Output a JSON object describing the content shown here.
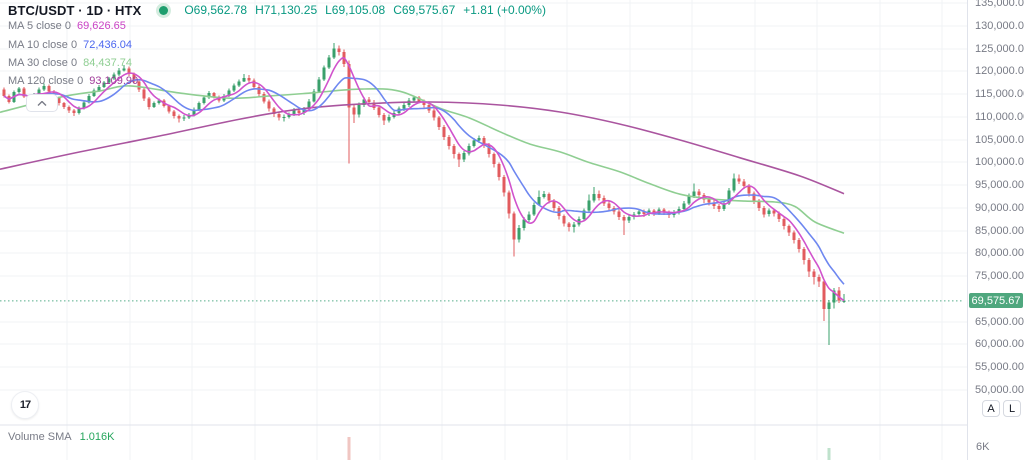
{
  "header": {
    "symbol_title": "BTC/USDT · 1D · HTX",
    "status_color": "#1e9e6e",
    "status_halo": "#d4ecdf",
    "ohlc_color": "#089981",
    "ohlc_items": [
      {
        "label": "O",
        "value": "69,562.78"
      },
      {
        "label": "H",
        "value": "71,130.25"
      },
      {
        "label": "L",
        "value": "69,105.08"
      },
      {
        "label": "C",
        "value": "69,575.67"
      },
      {
        "label": "",
        "value": "+1.81 (+0.00%)"
      }
    ]
  },
  "indicators": [
    {
      "label": "MA 5 close 0",
      "value": "69,626.65",
      "color": "#ca43c5",
      "period": 5
    },
    {
      "label": "MA 10 close 0",
      "value": "72,436.04",
      "color": "#4b66ee",
      "period": 10
    },
    {
      "label": "MA 30 close 0",
      "value": "84,437.74",
      "color": "#8fce92",
      "period": 30
    },
    {
      "label": "MA 120 close 0",
      "value": "93,109.90",
      "color": "#a03c99",
      "period": 120
    }
  ],
  "volume_pane": {
    "label": "Volume SMA",
    "value": "1.016K",
    "value_color": "#26a65d",
    "axis_label": "6K"
  },
  "axis": {
    "tick_prices": [
      135000,
      130000,
      125000,
      120000,
      115000,
      110000,
      105000,
      100000,
      95000,
      90000,
      85000,
      80000,
      75000,
      65000,
      60000,
      55000,
      50000
    ],
    "current_price": 69575.67,
    "current_price_label": "69,575.67",
    "badge_color": "#4fa77e"
  },
  "buttons": {
    "auto_label": "A",
    "log_label": "L"
  },
  "footer": {
    "logo_text": "17"
  },
  "chart_data": {
    "type": "candlestick",
    "symbol": "BTC/USDT",
    "interval": "1D",
    "exchange": "HTX",
    "price_axis_range": [
      50000,
      135000
    ],
    "colors": {
      "up": "#3aa06b",
      "down": "#e25b5e",
      "grid": "#f1f3f6",
      "separator": "#e0e3eb",
      "price_line": "#56ad8a",
      "vol_up": "#bfe2cc",
      "vol_down": "#f0c6c2",
      "ma5": "#d153cc",
      "ma10": "#6e87f0",
      "ma30": "#8fce92",
      "ma120": "#aa559f"
    },
    "candles": {
      "first_open": 116000,
      "closes": [
        114600,
        113300,
        115400,
        116200,
        114500,
        113500,
        114800,
        116000,
        116800,
        115600,
        114200,
        113000,
        112200,
        111400,
        110800,
        111900,
        113200,
        114600,
        115800,
        116600,
        117500,
        118400,
        119300,
        120200,
        120600,
        119400,
        117800,
        116000,
        114000,
        112200,
        113000,
        113600,
        112400,
        111200,
        110200,
        109600,
        109900,
        110400,
        111600,
        113000,
        114200,
        115200,
        114400,
        113600,
        114600,
        115800,
        116900,
        117800,
        118500,
        118000,
        116600,
        115000,
        113400,
        111800,
        110600,
        109800,
        110000,
        110500,
        111400,
        110800,
        111800,
        113400,
        115600,
        118200,
        120800,
        123000,
        125000,
        124200,
        121600,
        112000,
        110500,
        112600,
        113800,
        113200,
        112000,
        110400,
        109200,
        110000,
        110800,
        111800,
        112600,
        113600,
        114200,
        113400,
        112600,
        111400,
        109800,
        107800,
        105600,
        103600,
        101800,
        100600,
        102000,
        103600,
        104800,
        105400,
        103800,
        101800,
        99600,
        96800,
        93400,
        88800,
        83000,
        85600,
        87400,
        88600,
        90600,
        92400,
        93000,
        91600,
        90000,
        88200,
        86600,
        85800,
        86400,
        87600,
        89400,
        91600,
        93000,
        92200,
        91000,
        90000,
        89200,
        88000,
        87200,
        88000,
        88600,
        89200,
        88600,
        89400,
        88800,
        89600,
        89000,
        88400,
        89000,
        89800,
        91000,
        92600,
        93600,
        92800,
        91800,
        91200,
        90400,
        89800,
        91000,
        93800,
        96400,
        95800,
        94800,
        93200,
        91600,
        90000,
        88600,
        89400,
        88800,
        87600,
        86000,
        84600,
        83000,
        81000,
        78600,
        76000,
        74800,
        73800,
        67800,
        69200,
        71800,
        69600,
        69575.67
      ],
      "highs": [
        116400,
        114900,
        115800,
        116600,
        116500,
        114800,
        115200,
        116400,
        117300,
        117100,
        115900,
        114500,
        113300,
        112500,
        111700,
        112300,
        113600,
        115000,
        116200,
        117000,
        117900,
        118800,
        119700,
        120700,
        121400,
        121000,
        119700,
        118100,
        116300,
        114300,
        113400,
        114000,
        113900,
        112700,
        111500,
        110500,
        110400,
        110800,
        112000,
        113400,
        114600,
        115700,
        115500,
        114700,
        115000,
        116200,
        117300,
        118200,
        119400,
        119200,
        118400,
        117000,
        115400,
        113800,
        112200,
        111000,
        110500,
        111000,
        111900,
        111800,
        112200,
        113900,
        116100,
        118700,
        121300,
        123600,
        126200,
        125700,
        124800,
        122400,
        112800,
        113100,
        114300,
        114400,
        113700,
        112400,
        110800,
        110500,
        111300,
        112300,
        113100,
        114100,
        114700,
        114600,
        113800,
        113000,
        111800,
        110200,
        108200,
        106000,
        104000,
        102200,
        102500,
        104100,
        105400,
        105900,
        105800,
        104200,
        102200,
        100000,
        97200,
        93800,
        89200,
        86200,
        88000,
        89200,
        91200,
        93800,
        93700,
        93400,
        92000,
        90400,
        88600,
        86900,
        86900,
        88100,
        89900,
        92900,
        94600,
        93800,
        92700,
        91500,
        90400,
        89600,
        88400,
        88500,
        89100,
        89700,
        89600,
        89900,
        89800,
        90100,
        90000,
        89400,
        89500,
        90300,
        91500,
        93200,
        95400,
        94200,
        93300,
        92300,
        91700,
        90900,
        91500,
        94400,
        97600,
        97300,
        96300,
        95200,
        93600,
        92000,
        90400,
        89900,
        89800,
        89200,
        88000,
        86400,
        85000,
        83400,
        81400,
        79000,
        76600,
        75400,
        74200,
        69800,
        72400,
        72600,
        71130.25
      ],
      "lows": [
        114200,
        112900,
        113000,
        115100,
        114100,
        112600,
        113200,
        114500,
        115700,
        115200,
        113800,
        112500,
        111700,
        110800,
        110200,
        110500,
        111600,
        112900,
        114300,
        115400,
        116300,
        117200,
        118100,
        119000,
        119900,
        119000,
        117300,
        115500,
        113500,
        111600,
        111900,
        112700,
        112000,
        110700,
        109600,
        108800,
        109100,
        109500,
        110100,
        111300,
        112700,
        113900,
        114000,
        113200,
        113300,
        114300,
        115400,
        116600,
        117600,
        117500,
        116100,
        114500,
        112900,
        111200,
        110000,
        109200,
        109000,
        109600,
        110200,
        110200,
        110400,
        111400,
        113100,
        115300,
        117900,
        120500,
        122700,
        123500,
        120900,
        99800,
        108600,
        109900,
        112200,
        112700,
        111500,
        109800,
        108200,
        108800,
        109600,
        110400,
        111300,
        112200,
        113300,
        112900,
        112100,
        110800,
        109200,
        107100,
        104900,
        102800,
        100800,
        99000,
        100100,
        101500,
        103300,
        104200,
        103200,
        101100,
        98900,
        96000,
        92500,
        87700,
        79300,
        82400,
        85000,
        86900,
        88200,
        90500,
        92100,
        91000,
        89300,
        87500,
        85900,
        84800,
        84600,
        85900,
        87100,
        89000,
        91200,
        91600,
        90400,
        89300,
        88500,
        87300,
        84000,
        86700,
        87400,
        88100,
        88000,
        88200,
        88200,
        88400,
        88400,
        87800,
        87900,
        88600,
        89400,
        90600,
        92200,
        92200,
        91100,
        90500,
        89700,
        89100,
        89300,
        90600,
        93400,
        95200,
        94200,
        92500,
        90900,
        89300,
        87900,
        88100,
        88100,
        86900,
        85300,
        83800,
        82200,
        80200,
        77600,
        74800,
        73200,
        72600,
        65200,
        59900,
        67900,
        69100,
        69105.08
      ],
      "last": {
        "open": 69562.78,
        "high": 71130.25,
        "low": 69105.08,
        "close": 69575.67
      }
    },
    "moving_averages": {
      "ma5": {
        "period": 5,
        "source": "computed"
      },
      "ma10": {
        "period": 10,
        "source": "computed"
      },
      "ma30": {
        "period": 30,
        "points": [
          [
            0,
            111000
          ],
          [
            60,
            114300
          ],
          [
            100,
            115700
          ],
          [
            130,
            116800
          ],
          [
            180,
            115200
          ],
          [
            230,
            114100
          ],
          [
            270,
            114600
          ],
          [
            310,
            115200
          ],
          [
            360,
            116100
          ],
          [
            400,
            115600
          ],
          [
            440,
            111900
          ],
          [
            470,
            109700
          ],
          [
            500,
            106700
          ],
          [
            530,
            104000
          ],
          [
            560,
            102300
          ],
          [
            590,
            99900
          ],
          [
            620,
            97900
          ],
          [
            650,
            95300
          ],
          [
            680,
            93000
          ],
          [
            710,
            92000
          ],
          [
            745,
            91500
          ],
          [
            775,
            91300
          ],
          [
            795,
            90300
          ],
          [
            815,
            86900
          ],
          [
            844,
            84437
          ]
        ]
      },
      "ma120": {
        "period": 120,
        "points": [
          [
            0,
            98500
          ],
          [
            80,
            102300
          ],
          [
            160,
            105800
          ],
          [
            240,
            109500
          ],
          [
            300,
            111700
          ],
          [
            360,
            112800
          ],
          [
            430,
            113250
          ],
          [
            500,
            112600
          ],
          [
            560,
            111050
          ],
          [
            620,
            108400
          ],
          [
            680,
            104900
          ],
          [
            740,
            101000
          ],
          [
            800,
            97000
          ],
          [
            844,
            93110
          ]
        ]
      }
    },
    "volume_bars_visible": [
      {
        "index": 69,
        "k": 12.0,
        "direction": "down"
      },
      {
        "index": 165,
        "k": 6.2,
        "direction": "up"
      }
    ],
    "volume_axis": {
      "tick_k": 6,
      "tick_label": "6K"
    }
  }
}
